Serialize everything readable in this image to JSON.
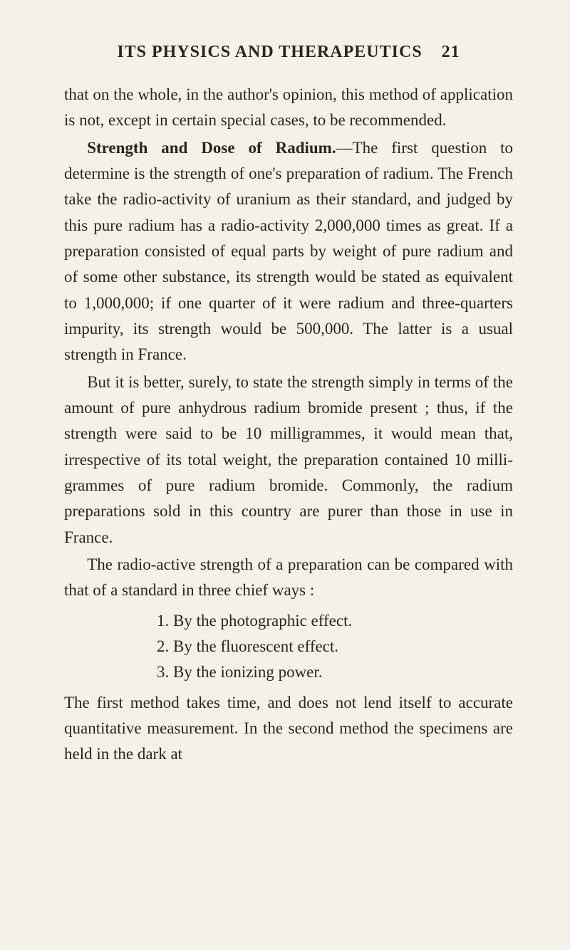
{
  "header": {
    "title": "ITS PHYSICS AND THERAPEUTICS",
    "pageNumber": "21"
  },
  "paragraphs": {
    "p1": "that on the whole, in the author's opinion, this method of application is not, except in certain special cases, to be recommended.",
    "p2_bold": "Strength and Dose of Radium.",
    "p2_rest": "—The first ques­tion to determine is the strength of one's preparation of radium. The French take the radio-activity of uranium as their standard, and judged by this pure radium has a radio-activity 2,000,000 times as great. If a preparation consisted of equal parts by weight of pure radium and of some other substance, its strength would be stated as equivalent to 1,000,000; if one quarter of it were radium and three-quarters impurity, its strength would be 500,000. The latter is a usual strength in France.",
    "p3": "But it is better, surely, to state the strength simply in terms of the amount of pure anhydrous radium bromide present ; thus, if the strength were said to be 10 milligrammes, it would mean that, irrespective of its total weight, the preparation contained 10 milli­grammes of pure radium bromide. Commonly, the radium preparations sold in this country are purer than those in use in France.",
    "p4": "The radio-active strength of a preparation can be compared with that of a standard in three chief ways :",
    "p5": "The first method takes time, and does not lend itself to accurate quantitative measurement. In the second method the specimens are held in the dark at"
  },
  "list": {
    "item1": "1. By the photographic effect.",
    "item2": "2. By the fluorescent effect.",
    "item3": "3. By the ionizing power."
  },
  "colors": {
    "background": "#f5f1e8",
    "text": "#2a2520"
  },
  "typography": {
    "body_fontsize": 23,
    "header_fontsize": 24,
    "line_height": 1.58,
    "font_family": "Georgia, Times New Roman, serif"
  }
}
